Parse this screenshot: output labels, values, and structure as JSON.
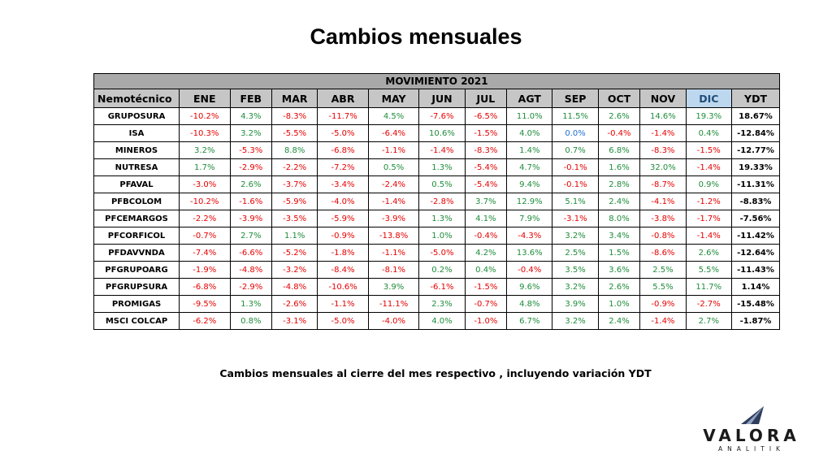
{
  "title": "Cambios mensuales",
  "table": {
    "banner": "MOVIMIENTO  2021",
    "columns": [
      "Nemotécnico",
      "ENE",
      "FEB",
      "MAR",
      "ABR",
      "MAY",
      "JUN",
      "JUL",
      "AGT",
      "SEP",
      "OCT",
      "NOV",
      "DIC",
      "YDT"
    ],
    "highlighted_column": "DIC",
    "rows": [
      {
        "name": "GRUPOSURA",
        "values": [
          "-10.2%",
          "4.3%",
          "-8.3%",
          "-11.7%",
          "4.5%",
          "-7.6%",
          "-6.5%",
          "11.0%",
          "11.5%",
          "2.6%",
          "14.6%",
          "19.3%"
        ],
        "ydt": "18.67%"
      },
      {
        "name": "ISA",
        "values": [
          "-10.3%",
          "3.2%",
          "-5.5%",
          "-5.0%",
          "-6.4%",
          "10.6%",
          "-1.5%",
          "4.0%",
          "0.0%",
          "-0.4%",
          "-1.4%",
          "0.4%"
        ],
        "ydt": "-12.84%"
      },
      {
        "name": "MINEROS",
        "values": [
          "3.2%",
          "-5.3%",
          "8.8%",
          "-6.8%",
          "-1.1%",
          "-1.4%",
          "-8.3%",
          "1.4%",
          "0.7%",
          "6.8%",
          "-8.3%",
          "-1.5%"
        ],
        "ydt": "-12.77%"
      },
      {
        "name": "NUTRESA",
        "values": [
          "1.7%",
          "-2.9%",
          "-2.2%",
          "-7.2%",
          "0.5%",
          "1.3%",
          "-5.4%",
          "4.7%",
          "-0.1%",
          "1.6%",
          "32.0%",
          "-1.4%"
        ],
        "ydt": "19.33%"
      },
      {
        "name": "PFAVAL",
        "values": [
          "-3.0%",
          "2.6%",
          "-3.7%",
          "-3.4%",
          "-2.4%",
          "0.5%",
          "-5.4%",
          "9.4%",
          "-0.1%",
          "2.8%",
          "-8.7%",
          "0.9%"
        ],
        "ydt": "-11.31%"
      },
      {
        "name": "PFBCOLOM",
        "values": [
          "-10.2%",
          "-1.6%",
          "-5.9%",
          "-4.0%",
          "-1.4%",
          "-2.8%",
          "3.7%",
          "12.9%",
          "5.1%",
          "2.4%",
          "-4.1%",
          "-1.2%"
        ],
        "ydt": "-8.83%"
      },
      {
        "name": "PFCEMARGOS",
        "values": [
          "-2.2%",
          "-3.9%",
          "-3.5%",
          "-5.9%",
          "-3.9%",
          "1.3%",
          "4.1%",
          "7.9%",
          "-3.1%",
          "8.0%",
          "-3.8%",
          "-1.7%"
        ],
        "ydt": "-7.56%"
      },
      {
        "name": "PFCORFICOL",
        "values": [
          "-0.7%",
          "2.7%",
          "1.1%",
          "-0.9%",
          "-13.8%",
          "1.0%",
          "-0.4%",
          "-4.3%",
          "3.2%",
          "3.4%",
          "-0.8%",
          "-1.4%"
        ],
        "ydt": "-11.42%"
      },
      {
        "name": "PFDAVVNDA",
        "values": [
          "-7.4%",
          "-6.6%",
          "-5.2%",
          "-1.8%",
          "-1.1%",
          "-5.0%",
          "4.2%",
          "13.6%",
          "2.5%",
          "1.5%",
          "-8.6%",
          "2.6%"
        ],
        "ydt": "-12.64%"
      },
      {
        "name": "PFGRUPOARG",
        "values": [
          "-1.9%",
          "-4.8%",
          "-3.2%",
          "-8.4%",
          "-8.1%",
          "0.2%",
          "0.4%",
          "-0.4%",
          "3.5%",
          "3.6%",
          "2.5%",
          "5.5%"
        ],
        "ydt": "-11.43%"
      },
      {
        "name": "PFGRUPSURA",
        "values": [
          "-6.8%",
          "-2.9%",
          "-4.8%",
          "-10.6%",
          "3.9%",
          "-6.1%",
          "-1.5%",
          "9.6%",
          "3.2%",
          "2.6%",
          "5.5%",
          "11.7%"
        ],
        "ydt": "1.14%"
      },
      {
        "name": "PROMIGAS",
        "values": [
          "-9.5%",
          "1.3%",
          "-2.6%",
          "-1.1%",
          "-11.1%",
          "2.3%",
          "-0.7%",
          "4.8%",
          "3.9%",
          "1.0%",
          "-0.9%",
          "-2.7%"
        ],
        "ydt": "-15.48%"
      },
      {
        "name": "MSCI COLCAP",
        "values": [
          "-6.2%",
          "0.8%",
          "-3.1%",
          "-5.0%",
          "-4.0%",
          "4.0%",
          "-1.0%",
          "6.7%",
          "3.2%",
          "2.4%",
          "-1.4%",
          "2.7%"
        ],
        "ydt": "-1.87%"
      }
    ]
  },
  "note": "Cambios mensuales al cierre del mes respectivo , incluyendo variación YDT",
  "logo": {
    "word": "VALORA",
    "sub": "ANALITIK"
  },
  "colors": {
    "negative": "#e60000",
    "positive": "#1e8c3a",
    "zero": "#1f6fd1",
    "header_bg": "#c6c6c6",
    "banner_bg": "#a9a9a9",
    "dic_header_bg": "#bdd7ee"
  }
}
